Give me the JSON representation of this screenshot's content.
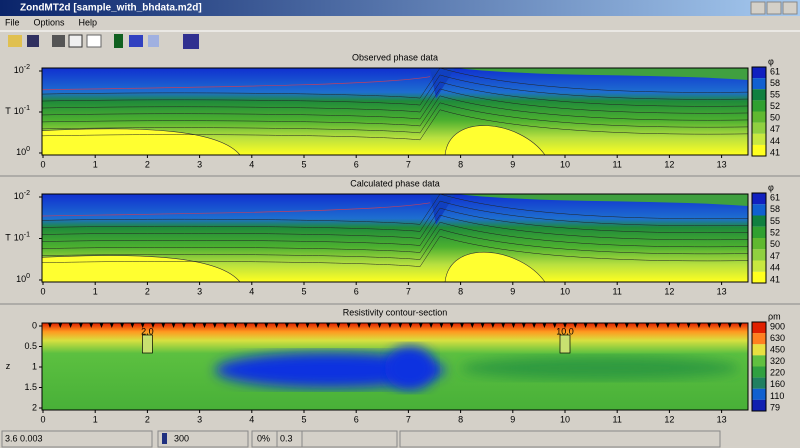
{
  "window": {
    "title": "ZondMT2d [sample_with_bhdata.m2d]"
  },
  "menu": [
    "File",
    "Options",
    "Help"
  ],
  "panels": [
    {
      "title": "Observed phase data",
      "y_label": "T",
      "y_ticks": [
        {
          "base": "10",
          "exp": "-2"
        },
        {
          "base": "10",
          "exp": "-1"
        },
        {
          "base": "10",
          "exp": "0"
        }
      ],
      "x_ticks": [
        "0",
        "1",
        "2",
        "3",
        "4",
        "5",
        "6",
        "7",
        "8",
        "9",
        "10",
        "11",
        "12",
        "13"
      ],
      "colorbar": {
        "unit": "φ",
        "labels": [
          "61",
          "58",
          "55",
          "52",
          "50",
          "47",
          "44",
          "41"
        ]
      }
    },
    {
      "title": "Calculated phase data",
      "y_label": "T",
      "y_ticks": [
        {
          "base": "10",
          "exp": "-2"
        },
        {
          "base": "10",
          "exp": "-1"
        },
        {
          "base": "10",
          "exp": "0"
        }
      ],
      "x_ticks": [
        "0",
        "1",
        "2",
        "3",
        "4",
        "5",
        "6",
        "7",
        "8",
        "9",
        "10",
        "11",
        "12",
        "13"
      ],
      "colorbar": {
        "unit": "φ",
        "labels": [
          "61",
          "58",
          "55",
          "52",
          "50",
          "47",
          "44",
          "41"
        ]
      }
    },
    {
      "title": "Resistivity contour-section",
      "y_label": "z",
      "y_ticks": [
        "0",
        "0.5",
        "1",
        "1.5",
        "2"
      ],
      "x_ticks": [
        "0",
        "1",
        "2",
        "3",
        "4",
        "5",
        "6",
        "7",
        "8",
        "9",
        "10",
        "11",
        "12",
        "13"
      ],
      "colorbar": {
        "unit": "ρm",
        "labels": [
          "900",
          "630",
          "450",
          "320",
          "220",
          "160",
          "110",
          "79"
        ]
      },
      "boreholes": [
        "2.0",
        "10.0"
      ]
    }
  ],
  "status": [
    "3.6 0.003",
    "300",
    "0%",
    "0.3"
  ]
}
